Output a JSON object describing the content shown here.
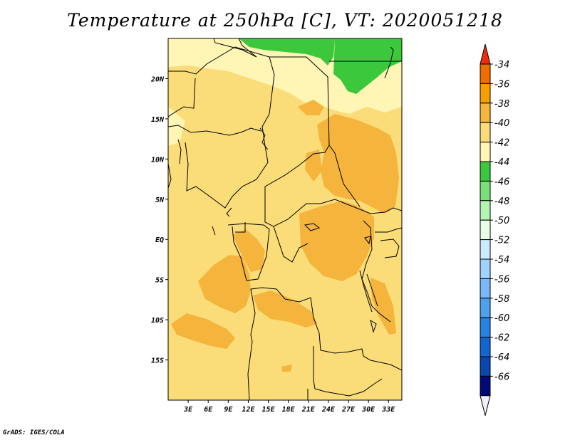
{
  "title": "Temperature at 250hPa [C], VT: 2020051218",
  "credit": "GrADS: IGES/COLA",
  "map": {
    "lat_labels": [
      "20N",
      "15N",
      "10N",
      "5N",
      "EQ",
      "5S",
      "10S",
      "15S"
    ],
    "lat_values": [
      20,
      15,
      10,
      5,
      0,
      -5,
      -10,
      -15
    ],
    "lon_labels": [
      "3E",
      "6E",
      "9E",
      "12E",
      "15E",
      "18E",
      "21E",
      "24E",
      "27E",
      "30E",
      "33E"
    ],
    "lon_values": [
      3,
      6,
      9,
      12,
      15,
      18,
      21,
      24,
      27,
      30,
      33
    ],
    "lat_range": [
      -20,
      25
    ],
    "lon_range": [
      0,
      35
    ]
  },
  "colorbar": {
    "labels": [
      "-34",
      "-36",
      "-38",
      "-40",
      "-42",
      "-44",
      "-46",
      "-48",
      "-50",
      "-52",
      "-54",
      "-56",
      "-58",
      "-60",
      "-62",
      "-64",
      "-66"
    ],
    "colors": [
      "#f52a0a",
      "#f06e00",
      "#f5a000",
      "#f5b43c",
      "#fadc78",
      "#fff5b4",
      "#3cc83c",
      "#78e178",
      "#b4f5b4",
      "#e6ffe6",
      "#cdebff",
      "#a0d2ff",
      "#78b9fa",
      "#50a0f0",
      "#2882e6",
      "#1464d2",
      "#0a46af",
      "#000a78",
      "#f0f0ff"
    ]
  },
  "palette": {
    "c40": "#fadc78",
    "c38": "#f5b43c",
    "c42": "#fff5b4",
    "c44": "#3cc83c",
    "border": "#000000"
  }
}
